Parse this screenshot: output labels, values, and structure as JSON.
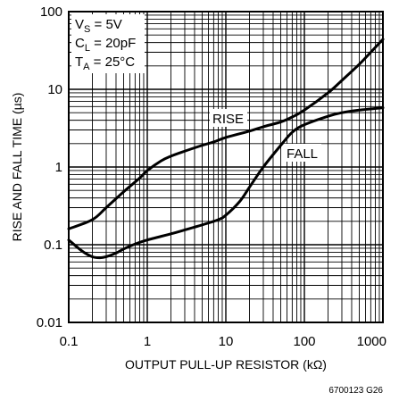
{
  "chart_data": {
    "type": "line",
    "xlabel": "OUTPUT PULL-UP RESISTOR (kΩ)",
    "ylabel": "RISE AND FALL TIME (µs)",
    "xscale": "log",
    "yscale": "log",
    "xlim": [
      0.1,
      1000
    ],
    "ylim": [
      0.01,
      100
    ],
    "x_tick_labels": [
      "0.1",
      "1",
      "10",
      "100",
      "1000"
    ],
    "y_tick_labels": [
      "100",
      "10",
      "1",
      "0.1",
      "0.01"
    ],
    "grid": true,
    "conditions": [
      {
        "main": "V",
        "sub": "S",
        "rest": " = 5V"
      },
      {
        "main": "C",
        "sub": "L",
        "rest": " = 20pF"
      },
      {
        "main": "T",
        "sub": "A",
        "rest": " = 25°C"
      }
    ],
    "series": [
      {
        "name": "RISE",
        "x": [
          0.1,
          0.2,
          0.3,
          0.5,
          0.8,
          1.0,
          1.5,
          2.0,
          3.0,
          5.0,
          7.0,
          10,
          20,
          30,
          50,
          70,
          100,
          200,
          300,
          500,
          700,
          1000
        ],
        "y": [
          0.16,
          0.21,
          0.3,
          0.48,
          0.72,
          0.9,
          1.2,
          1.38,
          1.6,
          1.9,
          2.1,
          2.4,
          2.9,
          3.3,
          3.8,
          4.4,
          5.4,
          9.0,
          13,
          21,
          30,
          44
        ]
      },
      {
        "name": "FALL",
        "x": [
          0.1,
          0.15,
          0.2,
          0.25,
          0.3,
          0.4,
          0.5,
          0.7,
          1.0,
          2.0,
          3.0,
          5.0,
          8.0,
          10,
          15,
          20,
          30,
          50,
          70,
          100,
          200,
          300,
          500,
          1000
        ],
        "y": [
          0.115,
          0.082,
          0.07,
          0.068,
          0.07,
          0.078,
          0.088,
          0.102,
          0.115,
          0.138,
          0.155,
          0.18,
          0.21,
          0.24,
          0.36,
          0.55,
          1.0,
          1.9,
          2.8,
          3.5,
          4.5,
          5.0,
          5.4,
          5.8
        ]
      }
    ],
    "footnote": "6700123 G26"
  }
}
